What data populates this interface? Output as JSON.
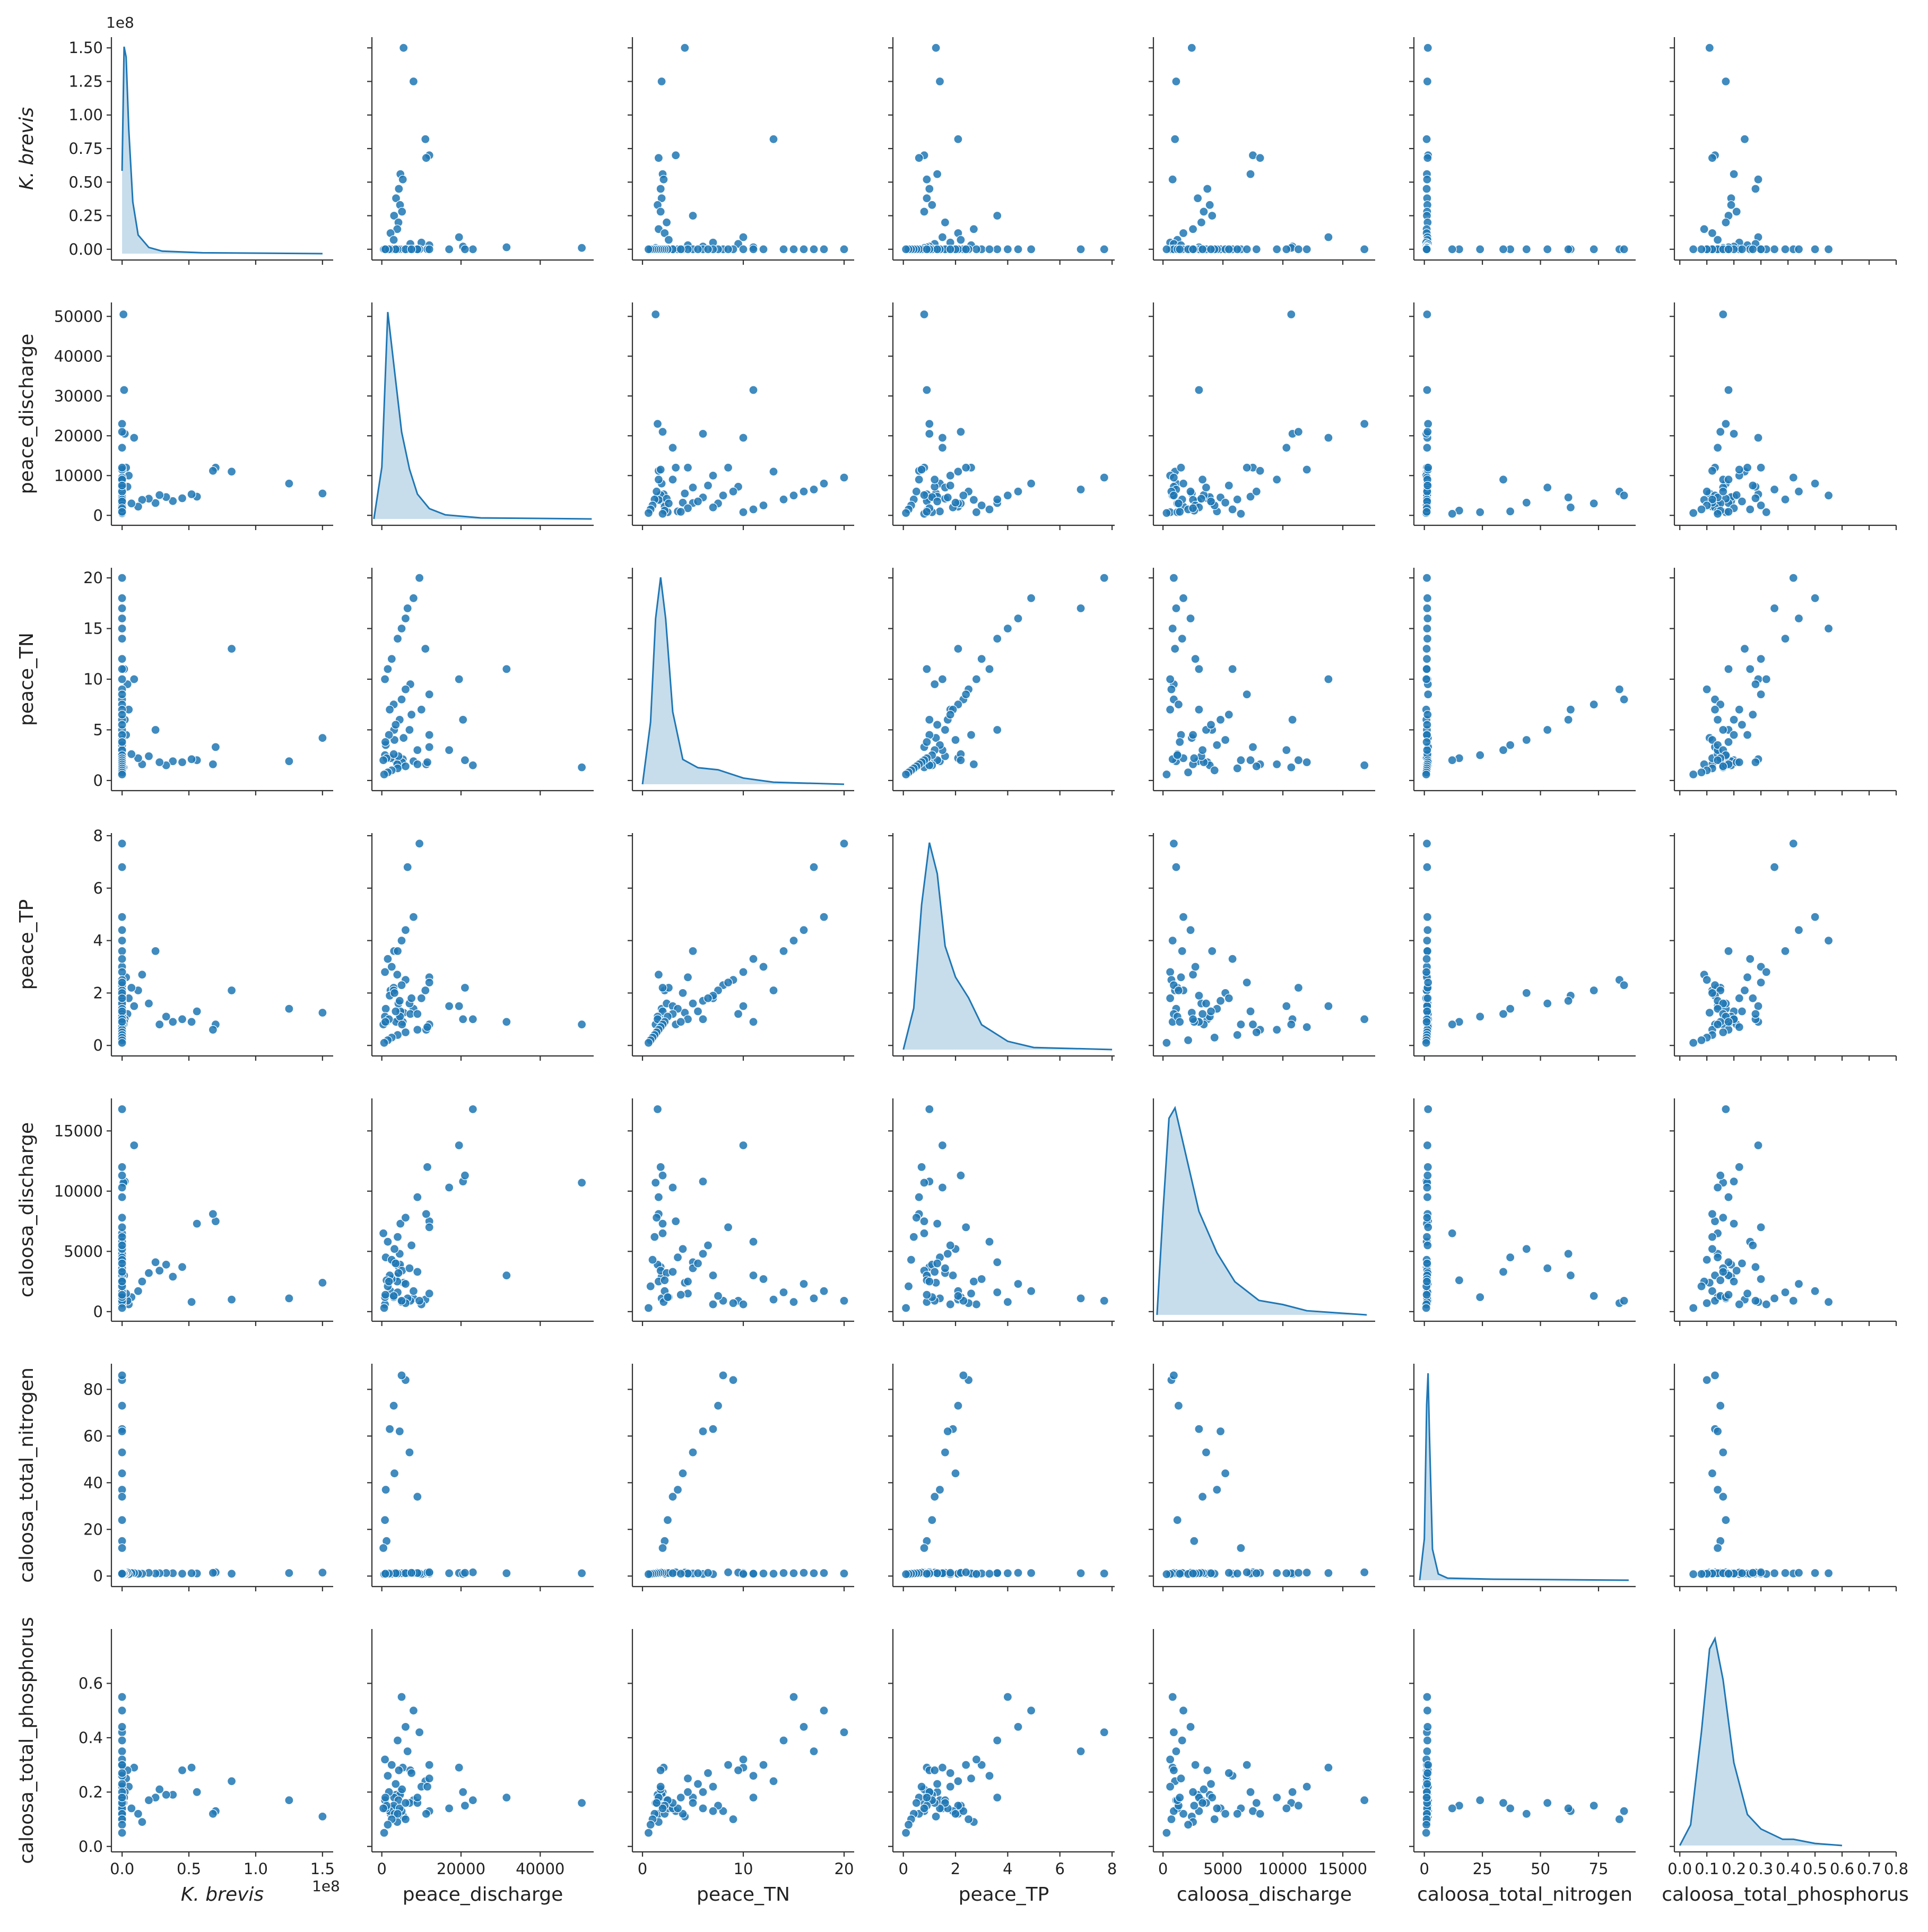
{
  "colors": {
    "point": "#1f77b4",
    "point_edge": "#ffffff",
    "kde_line": "#1f77b4",
    "kde_fill": "#1f77b4"
  },
  "chart_data": {
    "type": "scatter",
    "subtype": "pairplot",
    "diagonal": "kde",
    "variables": [
      {
        "label": "K. brevis",
        "italic": true,
        "range": [
          -8000000.0,
          158000000.0
        ],
        "ticks": [
          0,
          50000000.0,
          100000000.0,
          150000000.0
        ],
        "tick_labels_x": [
          "0.0",
          "0.5",
          "1.0",
          "1.5"
        ],
        "tick_labels_y": [
          "0.00",
          "0.25",
          "0.50",
          "0.75",
          "1.00",
          "1.25",
          "1.50"
        ],
        "ticks_y": [
          0,
          25000000.0,
          50000000.0,
          75000000.0,
          100000000.0,
          125000000.0,
          150000000.0
        ],
        "offset_text": "1e8"
      },
      {
        "label": "peace_discharge",
        "italic": false,
        "range": [
          -2500,
          53500
        ],
        "ticks": [
          0,
          20000,
          40000
        ],
        "tick_labels_x": [
          "0",
          "20000",
          "40000"
        ],
        "ticks_y": [
          0,
          10000,
          20000,
          30000,
          40000,
          50000
        ],
        "tick_labels_y": [
          "0",
          "10000",
          "20000",
          "30000",
          "40000",
          "50000"
        ],
        "offset_text": ""
      },
      {
        "label": "peace_TN",
        "italic": false,
        "range": [
          -1,
          21
        ],
        "ticks": [
          0,
          10,
          20
        ],
        "tick_labels_x": [
          "0",
          "10",
          "20"
        ],
        "ticks_y": [
          0,
          5,
          10,
          15,
          20
        ],
        "tick_labels_y": [
          "0",
          "5",
          "10",
          "15",
          "20"
        ],
        "offset_text": ""
      },
      {
        "label": "peace_TP",
        "italic": false,
        "range": [
          -0.4,
          8.1
        ],
        "ticks": [
          0,
          2,
          4,
          6,
          8
        ],
        "tick_labels_x": [
          "0",
          "2",
          "4",
          "6",
          "8"
        ],
        "ticks_y": [
          0,
          2,
          4,
          6,
          8
        ],
        "tick_labels_y": [
          "0",
          "2",
          "4",
          "6",
          "8"
        ],
        "offset_text": ""
      },
      {
        "label": "caloosa_discharge",
        "italic": false,
        "range": [
          -800,
          17700
        ],
        "ticks": [
          0,
          5000,
          10000,
          15000
        ],
        "tick_labels_x": [
          "0",
          "5000",
          "10000",
          "15000"
        ],
        "ticks_y": [
          0,
          5000,
          10000,
          15000
        ],
        "tick_labels_y": [
          "0",
          "5000",
          "10000",
          "15000"
        ],
        "offset_text": ""
      },
      {
        "label": "caloosa_total_nitrogen",
        "italic": false,
        "range": [
          -4.5,
          91
        ],
        "ticks": [
          0,
          25,
          50,
          75
        ],
        "tick_labels_x": [
          "0",
          "25",
          "50",
          "75"
        ],
        "ticks_y": [
          0,
          20,
          40,
          60,
          80
        ],
        "tick_labels_y": [
          "0",
          "20",
          "40",
          "60",
          "80"
        ],
        "offset_text": ""
      },
      {
        "label": "caloosa_total_phosphorus",
        "italic": false,
        "range": [
          -0.02,
          0.8
        ],
        "ticks": [
          0,
          0.1,
          0.2,
          0.3,
          0.4,
          0.5,
          0.6,
          0.7,
          0.8
        ],
        "tick_labels_x": [
          "0.0",
          "0.1",
          "0.2",
          "0.3",
          "0.4",
          "0.5",
          "0.6",
          "0.7",
          "0.8"
        ],
        "ticks_y": [
          0,
          0.2,
          0.4,
          0.6
        ],
        "tick_labels_y": [
          "0.0",
          "0.2",
          "0.4",
          "0.6"
        ],
        "offset_text": ""
      }
    ],
    "kde_diagonal": [
      {
        "x": [
          0,
          1500000.0,
          3000000.0,
          5000000.0,
          8000000.0,
          12000000.0,
          20000000.0,
          30000000.0,
          60000000.0,
          150000000.0
        ],
        "density": [
          0.4,
          1.0,
          0.95,
          0.6,
          0.25,
          0.09,
          0.03,
          0.012,
          0.004,
          0.0
        ]
      },
      {
        "x": [
          -2000,
          0,
          1500,
          3000,
          5000,
          7000,
          9000,
          12000,
          16000,
          25000,
          53000
        ],
        "density": [
          0.0,
          0.25,
          1.0,
          0.75,
          0.42,
          0.24,
          0.12,
          0.05,
          0.02,
          0.005,
          0.0
        ]
      },
      {
        "x": [
          0,
          0.8,
          1.3,
          1.8,
          2.3,
          3.0,
          4.0,
          5.5,
          7.5,
          10,
          13,
          20
        ],
        "density": [
          0.0,
          0.3,
          0.8,
          1.0,
          0.8,
          0.35,
          0.12,
          0.08,
          0.07,
          0.03,
          0.01,
          0.0
        ]
      },
      {
        "x": [
          0,
          0.4,
          0.7,
          1.0,
          1.3,
          1.6,
          2.0,
          2.5,
          3.0,
          4.0,
          5.0,
          8.0
        ],
        "density": [
          0.0,
          0.2,
          0.7,
          1.0,
          0.85,
          0.5,
          0.35,
          0.25,
          0.12,
          0.04,
          0.01,
          0.0
        ]
      },
      {
        "x": [
          -500,
          0,
          500,
          1000,
          2000,
          3000,
          4500,
          6000,
          8000,
          10000,
          12000,
          17000
        ],
        "density": [
          0.0,
          0.5,
          0.95,
          1.0,
          0.75,
          0.5,
          0.3,
          0.16,
          0.07,
          0.05,
          0.02,
          0.0
        ]
      },
      {
        "x": [
          -2,
          0,
          1,
          1.6,
          2.2,
          3.5,
          6,
          10,
          30,
          88
        ],
        "density": [
          0.0,
          0.2,
          0.85,
          1.0,
          0.7,
          0.15,
          0.03,
          0.01,
          0.005,
          0.0
        ]
      },
      {
        "x": [
          0,
          0.04,
          0.08,
          0.11,
          0.13,
          0.16,
          0.2,
          0.25,
          0.3,
          0.38,
          0.42,
          0.5,
          0.6
        ],
        "density": [
          0.0,
          0.1,
          0.55,
          0.95,
          1.0,
          0.8,
          0.4,
          0.15,
          0.08,
          0.03,
          0.03,
          0.01,
          0.0
        ]
      }
    ],
    "samples": [
      [
        150000000,
        5500,
        4.2,
        1.25,
        2400,
        1.5,
        0.11
      ],
      [
        125000000,
        8000,
        1.9,
        1.4,
        1100,
        1.3,
        0.17
      ],
      [
        82000000,
        11000,
        13.0,
        2.1,
        1000,
        1.0,
        0.24
      ],
      [
        70000000,
        12000,
        3.3,
        0.8,
        7500,
        1.6,
        0.13
      ],
      [
        68000000,
        11200,
        1.6,
        0.6,
        8100,
        1.4,
        0.12
      ],
      [
        56000000,
        4700,
        2.0,
        1.3,
        7300,
        1.1,
        0.2
      ],
      [
        52000000,
        5300,
        2.1,
        0.9,
        800,
        1.2,
        0.29
      ],
      [
        45000000,
        4300,
        1.8,
        1.0,
        3700,
        1.0,
        0.28
      ],
      [
        38000000,
        3600,
        1.9,
        0.9,
        2900,
        1.2,
        0.19
      ],
      [
        33000000,
        4600,
        1.5,
        1.1,
        3900,
        1.3,
        0.19
      ],
      [
        28000000,
        5100,
        1.8,
        0.8,
        3400,
        1.2,
        0.21
      ],
      [
        25000000,
        3100,
        5.0,
        3.6,
        4100,
        1.1,
        0.18
      ],
      [
        20000000,
        4200,
        2.4,
        1.6,
        3200,
        1.4,
        0.17
      ],
      [
        15000000,
        3900,
        1.6,
        2.7,
        2500,
        1.0,
        0.09
      ],
      [
        12000000,
        2200,
        2.2,
        2.1,
        1700,
        1.0,
        0.12
      ],
      [
        9000000,
        19500,
        10.0,
        1.5,
        13800,
        1.3,
        0.29
      ],
      [
        7000000,
        3000,
        2.6,
        2.2,
        1200,
        1.3,
        0.14
      ],
      [
        5000000,
        10000,
        7.0,
        1.8,
        600,
        0.8,
        0.22
      ],
      [
        4000000,
        7200,
        9.5,
        1.2,
        900,
        1.5,
        0.28
      ],
      [
        3000000,
        12000,
        4.5,
        2.6,
        1500,
        1.1,
        0.25
      ],
      [
        2000000,
        20500,
        6.0,
        1.0,
        10800,
        0.9,
        0.2
      ],
      [
        1500000,
        31500,
        11.0,
        0.9,
        3000,
        1.2,
        0.18
      ],
      [
        1000000,
        50500,
        1.3,
        0.8,
        10700,
        1.2,
        0.16
      ],
      [
        0,
        23000,
        1.5,
        1.0,
        16800,
        1.6,
        0.17
      ],
      [
        0,
        21000,
        2.0,
        2.2,
        11300,
        1.4,
        0.15
      ],
      [
        0,
        17000,
        3.0,
        1.5,
        10300,
        1.2,
        0.14
      ],
      [
        0,
        9500,
        20.0,
        7.7,
        900,
        1.1,
        0.42
      ],
      [
        0,
        8000,
        18.0,
        4.9,
        1700,
        1.3,
        0.5
      ],
      [
        0,
        6500,
        17.0,
        6.8,
        1100,
        1.2,
        0.35
      ],
      [
        0,
        6000,
        16.0,
        4.4,
        2300,
        1.4,
        0.44
      ],
      [
        0,
        5000,
        15.0,
        4.0,
        800,
        1.2,
        0.55
      ],
      [
        0,
        4000,
        14.0,
        3.6,
        1600,
        1.3,
        0.39
      ],
      [
        0,
        2500,
        12.0,
        3.0,
        2700,
        1.1,
        0.3
      ],
      [
        0,
        1500,
        11.0,
        3.3,
        5800,
        1.0,
        0.26
      ],
      [
        0,
        800,
        10.0,
        2.8,
        600,
        0.9,
        0.32
      ],
      [
        0,
        6000,
        9.0,
        2.5,
        700,
        84,
        0.1
      ],
      [
        0,
        5000,
        8.0,
        2.3,
        900,
        86,
        0.13
      ],
      [
        0,
        3000,
        7.5,
        2.1,
        1300,
        73,
        0.15
      ],
      [
        0,
        2000,
        7.0,
        1.9,
        3000,
        63,
        0.13
      ],
      [
        0,
        4500,
        6.0,
        1.7,
        4800,
        62,
        0.14
      ],
      [
        0,
        7000,
        5.0,
        1.6,
        3600,
        53,
        0.16
      ],
      [
        0,
        3200,
        4.0,
        2.0,
        5200,
        44,
        0.12
      ],
      [
        0,
        1000,
        3.5,
        1.4,
        4500,
        37,
        0.14
      ],
      [
        0,
        9000,
        3.0,
        1.2,
        3300,
        34,
        0.16
      ],
      [
        0,
        800,
        2.5,
        1.1,
        1200,
        24,
        0.17
      ],
      [
        0,
        1200,
        2.2,
        0.9,
        2600,
        15,
        0.15
      ],
      [
        0,
        400,
        2.0,
        0.8,
        6500,
        12,
        0.14
      ],
      [
        0,
        11500,
        1.8,
        0.7,
        12000,
        1.5,
        0.22
      ],
      [
        0,
        9000,
        1.6,
        0.6,
        9500,
        1.3,
        0.18
      ],
      [
        0,
        6000,
        1.4,
        0.5,
        7800,
        1.2,
        0.16
      ],
      [
        0,
        4000,
        1.2,
        0.4,
        6200,
        1.1,
        0.12
      ],
      [
        0,
        2500,
        1.0,
        0.3,
        4300,
        1.0,
        0.1
      ],
      [
        0,
        1500,
        0.8,
        0.2,
        2100,
        0.9,
        0.08
      ],
      [
        0,
        600,
        0.6,
        0.1,
        300,
        0.8,
        0.05
      ],
      [
        0,
        12000,
        8.5,
        2.4,
        7000,
        1.6,
        0.3
      ],
      [
        0,
        7500,
        6.5,
        1.8,
        5500,
        1.4,
        0.27
      ],
      [
        0,
        3500,
        5.5,
        1.3,
        4000,
        1.2,
        0.23
      ],
      [
        0,
        1800,
        4.5,
        1.0,
        2500,
        1.1,
        0.2
      ],
      [
        0,
        900,
        3.8,
        0.9,
        1400,
        1.0,
        0.18
      ]
    ]
  }
}
